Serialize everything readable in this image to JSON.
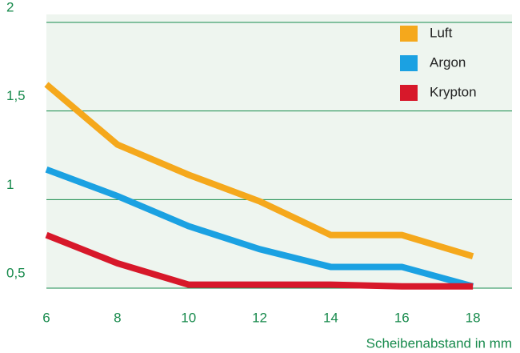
{
  "chart_data": {
    "type": "line",
    "x_label": "Scheibenabstand in mm",
    "x": [
      6,
      8,
      10,
      12,
      14,
      16,
      18
    ],
    "series": [
      {
        "name": "Luft",
        "color": "#f5a81c",
        "values": [
          1.65,
          1.31,
          1.14,
          0.99,
          0.8,
          0.8,
          0.68
        ]
      },
      {
        "name": "Argon",
        "color": "#1ba1e2",
        "values": [
          1.17,
          1.02,
          0.85,
          0.72,
          0.62,
          0.62,
          0.51
        ]
      },
      {
        "name": "Krypton",
        "color": "#d7182a",
        "values": [
          0.8,
          0.64,
          0.52,
          0.52,
          0.52,
          0.51,
          0.51
        ]
      }
    ],
    "xlim": [
      6,
      19.1
    ],
    "xticks": [
      6,
      8,
      10,
      12,
      14,
      16,
      18
    ],
    "ylim": [
      0.5,
      2
    ],
    "yticks": [
      {
        "value": 0.5,
        "label": "0,5"
      },
      1,
      {
        "value": 1.5,
        "label": "1,5"
      },
      2
    ],
    "grid": true,
    "legend": "upper right"
  }
}
